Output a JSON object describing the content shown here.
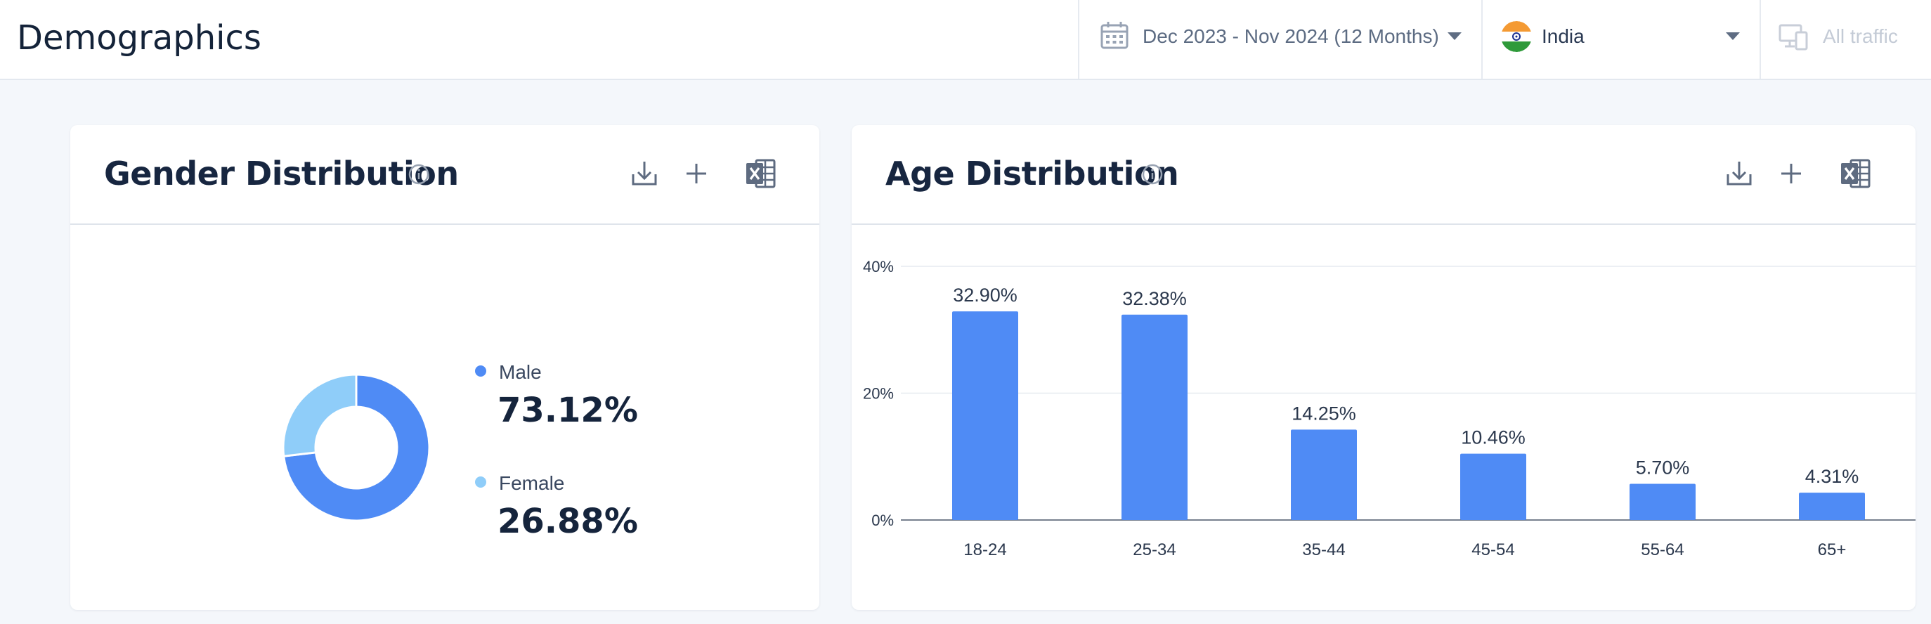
{
  "page": {
    "title": "Demographics"
  },
  "filters": {
    "date_range": "Dec 2023 - Nov 2024 (12 Months)",
    "country": "India",
    "traffic": "All traffic"
  },
  "gender_card": {
    "title": "Gender Distribution",
    "icons": [
      "info-icon",
      "download-icon",
      "plus-icon",
      "excel-icon"
    ],
    "segments": [
      {
        "label": "Male",
        "value_text": "73.12%",
        "value": 73.12,
        "color": "#4f8bf5"
      },
      {
        "label": "Female",
        "value_text": "26.88%",
        "value": 26.88,
        "color": "#8fcdf9"
      }
    ]
  },
  "age_card": {
    "title": "Age Distribution",
    "icons": [
      "info-icon",
      "download-icon",
      "plus-icon",
      "excel-icon"
    ]
  },
  "chart_data": [
    {
      "type": "pie",
      "title": "Gender Distribution",
      "categories": [
        "Male",
        "Female"
      ],
      "values": [
        73.12,
        26.88
      ],
      "colors": [
        "#4f8bf5",
        "#8fcdf9"
      ]
    },
    {
      "type": "bar",
      "title": "Age Distribution",
      "categories": [
        "18-24",
        "25-34",
        "35-44",
        "45-54",
        "55-64",
        "65+"
      ],
      "values": [
        32.9,
        32.38,
        14.25,
        10.46,
        5.7,
        4.31
      ],
      "data_labels": [
        "32.90%",
        "32.38%",
        "14.25%",
        "10.46%",
        "5.70%",
        "4.31%"
      ],
      "y_ticks": [
        "0%",
        "20%",
        "40%"
      ],
      "ylim": [
        0,
        40
      ],
      "grid": true,
      "bar_color": "#4f8bf5"
    }
  ]
}
